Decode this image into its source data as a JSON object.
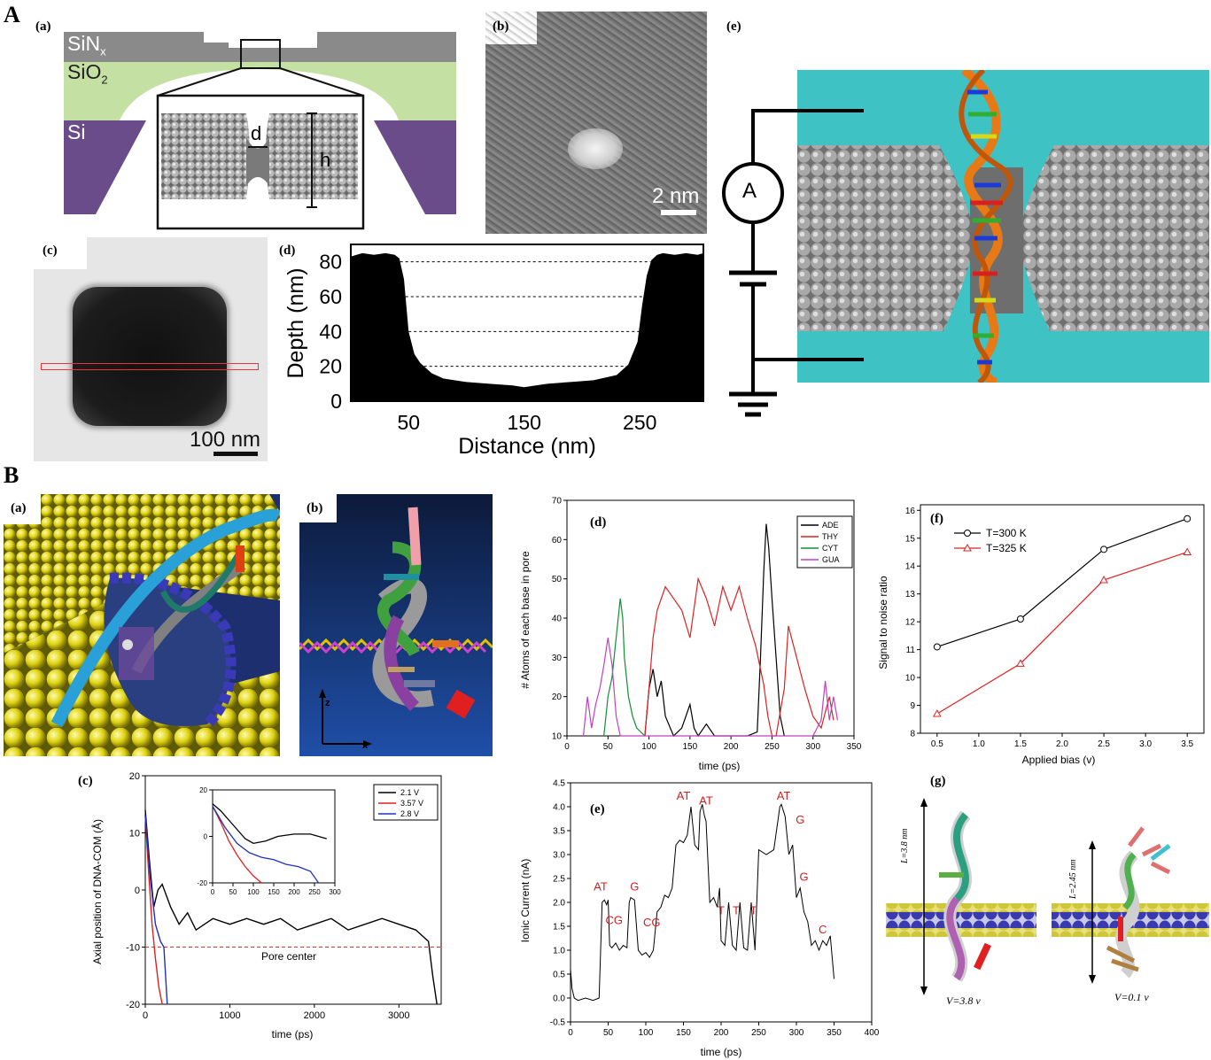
{
  "sections": {
    "A": "A",
    "B": "B"
  },
  "panelLabels": {
    "Aa": "(a)",
    "Ab": "(b)",
    "Ac": "(c)",
    "Ad": "(d)",
    "Ae": "(e)",
    "Ba": "(a)",
    "Bb": "(b)",
    "Bc": "(c)",
    "Bd": "(d)",
    "Be": "(e)",
    "Bf": "(f)",
    "Bg": "(g)"
  },
  "Aa": {
    "sin_main": "SiN",
    "sin_sub": "x",
    "sio_main": "SiO",
    "sio_sub": "2",
    "si": "Si",
    "d": "d",
    "h": "h",
    "colors": {
      "sin": "#8a8a8a",
      "sio2": "#c5e0a3",
      "si": "#6b4c8a"
    }
  },
  "Ab": {
    "scale": "2 nm"
  },
  "Ac": {
    "scale": "100 nm"
  },
  "Ae": {
    "meter": "A",
    "colors": {
      "water": "#3fc2c4"
    }
  },
  "Bb": {
    "axis_z": "z",
    "axis_x": "x"
  },
  "Bg": {
    "left_len": "L=3.8 nm",
    "right_len": "L=2.45 nm",
    "left_v": "V=3.8 v",
    "right_v": "V=0.1 v"
  },
  "chart_data": [
    {
      "id": "Ad",
      "type": "area",
      "xlabel": "Distance (nm)",
      "ylabel": "Depth (nm)",
      "xticks": [
        50,
        150,
        250
      ],
      "yticks": [
        0,
        20,
        40,
        60,
        80
      ],
      "xlim": [
        0,
        305
      ],
      "ylim": [
        0,
        90
      ],
      "x": [
        0,
        5,
        10,
        20,
        30,
        38,
        42,
        46,
        50,
        55,
        60,
        70,
        80,
        100,
        120,
        140,
        150,
        160,
        170,
        190,
        210,
        230,
        240,
        248,
        252,
        256,
        260,
        265,
        270,
        280,
        290,
        300,
        305
      ],
      "y": [
        83,
        84,
        85,
        84,
        85,
        84,
        82,
        70,
        40,
        27,
        22,
        16,
        13,
        11,
        10,
        9,
        8,
        9,
        10,
        11,
        12,
        15,
        21,
        34,
        55,
        72,
        81,
        84,
        85,
        84,
        85,
        84,
        85
      ]
    },
    {
      "id": "Bc",
      "type": "line",
      "xlabel": "time (ps)",
      "ylabel": "Axial position of DNA-COM (Å)",
      "xlim": [
        0,
        3500
      ],
      "ylim": [
        -20,
        20
      ],
      "xticks": [
        0,
        1000,
        2000,
        3000
      ],
      "yticks": [
        -20,
        -10,
        0,
        10,
        20
      ],
      "annotation": "Pore center",
      "ref_y": -10,
      "series": [
        {
          "name": "2.1 V",
          "color": "#000000",
          "x": [
            0,
            50,
            100,
            150,
            200,
            300,
            400,
            500,
            600,
            800,
            1000,
            1200,
            1400,
            1600,
            1800,
            2000,
            2200,
            2400,
            2600,
            2800,
            3000,
            3200,
            3350,
            3400,
            3450
          ],
          "y": [
            14,
            5,
            -3,
            0,
            1,
            -3,
            -6,
            -4,
            -7,
            -5,
            -6,
            -5,
            -6,
            -5,
            -7,
            -6,
            -5,
            -7,
            -6,
            -5,
            -6,
            -7,
            -9,
            -15,
            -20
          ]
        },
        {
          "name": "3.57 V",
          "color": "#e02020",
          "x": [
            0,
            40,
            80,
            120,
            160,
            200
          ],
          "y": [
            13,
            3,
            -6,
            -12,
            -17,
            -20
          ]
        },
        {
          "name": "2.8 V",
          "color": "#2030c0",
          "x": [
            0,
            60,
            120,
            180,
            220,
            260
          ],
          "y": [
            13,
            2,
            -6,
            -9,
            -10,
            -20
          ]
        }
      ],
      "inset": {
        "xlim": [
          0,
          300
        ],
        "ylim": [
          -20,
          20
        ],
        "xticks": [
          0,
          50,
          100,
          150,
          200,
          250,
          300
        ],
        "yticks": [
          -20,
          0,
          20
        ],
        "series": [
          {
            "name": "2.1 V",
            "x": [
              0,
              20,
              40,
              60,
              80,
              100,
              130,
              160,
              200,
              240,
              260,
              280
            ],
            "y": [
              14,
              11,
              7,
              3,
              -1,
              -3,
              -2,
              0,
              1,
              1,
              0,
              -1
            ]
          },
          {
            "name": "3.57 V",
            "x": [
              0,
              20,
              40,
              60,
              80,
              100,
              120
            ],
            "y": [
              13,
              6,
              -2,
              -8,
              -13,
              -17,
              -20
            ]
          },
          {
            "name": "2.8 V",
            "x": [
              0,
              30,
              60,
              90,
              120,
              150,
              180,
              210,
              240,
              260
            ],
            "y": [
              13,
              4,
              -3,
              -7,
              -9,
              -10,
              -12,
              -13,
              -15,
              -20
            ]
          }
        ]
      }
    },
    {
      "id": "Bd",
      "type": "line",
      "xlabel": "time (ps)",
      "ylabel": "# Atoms of each base in pore",
      "xlim": [
        0,
        350
      ],
      "ylim": [
        10,
        70
      ],
      "xticks": [
        0,
        50,
        100,
        150,
        200,
        250,
        300,
        350
      ],
      "yticks": [
        10,
        20,
        30,
        40,
        50,
        60,
        70
      ],
      "series": [
        {
          "name": "ADE",
          "color": "#000000",
          "x": [
            95,
            100,
            105,
            110,
            115,
            120,
            130,
            140,
            150,
            155,
            160,
            170,
            180,
            200,
            220,
            232,
            236,
            240,
            243,
            246,
            250,
            255,
            260,
            265
          ],
          "y": [
            10,
            22,
            27,
            20,
            24,
            15,
            10,
            12,
            18,
            12,
            10,
            13,
            10,
            10,
            10,
            11,
            30,
            52,
            64,
            58,
            45,
            30,
            15,
            10
          ]
        },
        {
          "name": "THY",
          "color": "#e02020",
          "x": [
            95,
            100,
            105,
            110,
            120,
            130,
            140,
            150,
            160,
            170,
            180,
            190,
            200,
            210,
            220,
            230,
            235,
            240,
            245,
            250,
            255,
            265,
            270,
            280,
            290,
            300,
            310,
            320,
            325
          ],
          "y": [
            10,
            22,
            35,
            42,
            48,
            45,
            42,
            35,
            50,
            45,
            38,
            48,
            42,
            48,
            40,
            33,
            28,
            23,
            15,
            10,
            10,
            22,
            38,
            30,
            22,
            15,
            12,
            20,
            14
          ]
        },
        {
          "name": "CYT",
          "color": "#109030",
          "x": [
            45,
            50,
            55,
            60,
            65,
            68,
            70,
            75,
            80,
            85,
            95
          ],
          "y": [
            10,
            20,
            25,
            35,
            45,
            40,
            30,
            20,
            15,
            12,
            10
          ]
        },
        {
          "name": "GUA",
          "color": "#c040c0",
          "x": [
            20,
            25,
            30,
            35,
            40,
            45,
            50,
            55,
            60,
            65,
            300,
            305,
            310,
            315,
            320,
            325,
            330
          ],
          "y": [
            10,
            20,
            12,
            18,
            22,
            28,
            35,
            28,
            15,
            10,
            10,
            12,
            14,
            24,
            14,
            20,
            14
          ]
        }
      ]
    },
    {
      "id": "Be",
      "type": "line",
      "xlabel": "time (ps)",
      "ylabel": "Ionic Current (nA)",
      "xlim": [
        0,
        400
      ],
      "ylim": [
        -0.5,
        4.5
      ],
      "xticks": [
        0,
        50,
        100,
        150,
        200,
        250,
        300,
        350,
        400
      ],
      "yticks": [
        -0.5,
        0.0,
        0.5,
        1.0,
        1.5,
        2.0,
        2.5,
        3.0,
        3.5,
        4.0,
        4.5
      ],
      "annotations": [
        {
          "t": "AT",
          "x": 40,
          "y": 2.25
        },
        {
          "t": "CG",
          "x": 58,
          "y": 1.55
        },
        {
          "t": "G",
          "x": 85,
          "y": 2.25
        },
        {
          "t": "CG",
          "x": 108,
          "y": 1.5
        },
        {
          "t": "AT",
          "x": 150,
          "y": 4.15
        },
        {
          "t": "AT",
          "x": 180,
          "y": 4.05
        },
        {
          "t": "T",
          "x": 200,
          "y": 1.75
        },
        {
          "t": "T",
          "x": 220,
          "y": 1.75
        },
        {
          "t": "T",
          "x": 243,
          "y": 1.75
        },
        {
          "t": "AT",
          "x": 283,
          "y": 4.15
        },
        {
          "t": "G",
          "x": 305,
          "y": 3.65
        },
        {
          "t": "G",
          "x": 310,
          "y": 2.45
        },
        {
          "t": "C",
          "x": 335,
          "y": 1.35
        }
      ],
      "series": [
        {
          "name": "current",
          "color": "#000000",
          "x": [
            0,
            2,
            5,
            10,
            20,
            30,
            38,
            40,
            42,
            45,
            48,
            50,
            52,
            55,
            60,
            65,
            70,
            75,
            78,
            80,
            85,
            90,
            95,
            100,
            105,
            110,
            115,
            120,
            125,
            130,
            135,
            140,
            145,
            150,
            155,
            160,
            165,
            170,
            172,
            175,
            178,
            180,
            185,
            190,
            195,
            198,
            200,
            205,
            210,
            215,
            220,
            225,
            230,
            235,
            240,
            245,
            250,
            260,
            270,
            278,
            280,
            285,
            290,
            295,
            300,
            305,
            310,
            315,
            320,
            325,
            330,
            335,
            340,
            345,
            350
          ],
          "y": [
            0.6,
            0.2,
            0,
            -0.05,
            0,
            -0.05,
            0,
            1.0,
            2.0,
            2.05,
            1.95,
            2.05,
            1.1,
            1.05,
            1.15,
            1.0,
            1.1,
            1.05,
            2.0,
            2.1,
            2.05,
            1.0,
            0.9,
            0.95,
            0.85,
            1.0,
            1.8,
            1.9,
            2.15,
            2.1,
            2.3,
            3.2,
            3.3,
            3.25,
            3.4,
            4.0,
            3.2,
            3.1,
            3.9,
            4.05,
            3.8,
            3.7,
            2.0,
            2.1,
            1.9,
            2.3,
            1.2,
            1.1,
            2.0,
            1.1,
            1.0,
            2.0,
            1.05,
            1.0,
            2.0,
            1.0,
            3.1,
            3.0,
            3.1,
            4.0,
            4.05,
            3.8,
            3.0,
            3.2,
            2.1,
            2.3,
            1.8,
            1.6,
            1.1,
            1.2,
            1.0,
            1.2,
            1.1,
            1.3,
            0.4
          ]
        }
      ]
    },
    {
      "id": "Bf",
      "type": "line",
      "xlabel": "Applied bias (v)",
      "ylabel": "Signal to noise ratio",
      "xlim": [
        0.3,
        3.7
      ],
      "ylim": [
        8,
        16.2
      ],
      "xticks": [
        0.5,
        1.0,
        1.5,
        2.0,
        2.5,
        3.0,
        3.5
      ],
      "yticks": [
        8,
        9,
        10,
        11,
        12,
        13,
        14,
        15,
        16
      ],
      "series": [
        {
          "name": "T=300 K",
          "color": "#000000",
          "marker": "circle",
          "x": [
            0.5,
            1.5,
            2.5,
            3.5
          ],
          "y": [
            11.1,
            12.1,
            14.6,
            15.7
          ]
        },
        {
          "name": "T=325 K",
          "color": "#e02020",
          "marker": "triangle",
          "x": [
            0.5,
            1.5,
            2.5,
            3.5
          ],
          "y": [
            8.7,
            10.5,
            13.5,
            14.5
          ]
        }
      ]
    }
  ]
}
